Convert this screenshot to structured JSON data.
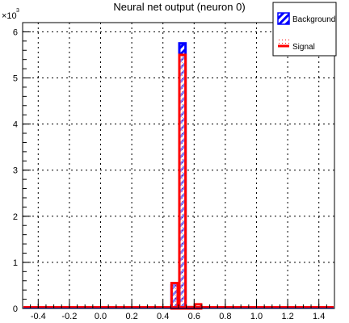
{
  "chart_data": {
    "type": "histogram",
    "title": "Neural net output (neuron 0)",
    "xlabel": "",
    "ylabel": "",
    "y_multiplier_label": "×10",
    "y_multiplier_exponent": "3",
    "xlim": [
      -0.5,
      1.5
    ],
    "ylim": [
      0,
      6200
    ],
    "grid": true,
    "legend_position": "top-right",
    "x_ticks": [
      -0.4,
      -0.2,
      0.0,
      0.2,
      0.4,
      0.6,
      0.8,
      1.0,
      1.2,
      1.4
    ],
    "x_tick_labels": [
      "-0.4",
      "-0.2",
      "0.0",
      "0.2",
      "0.4",
      "0.6",
      "0.8",
      "1.0",
      "1.2",
      "1.4"
    ],
    "y_ticks": [
      0,
      1000,
      2000,
      3000,
      4000,
      5000,
      6000
    ],
    "y_tick_labels": [
      "0",
      "1",
      "2",
      "3",
      "4",
      "5",
      "6"
    ],
    "bin_width": 0.05,
    "series": [
      {
        "name": "Background",
        "color": "#0000ff",
        "style": "hatched",
        "bins": [
          {
            "x0": 0.45,
            "x1": 0.5,
            "y": 500
          },
          {
            "x0": 0.5,
            "x1": 0.55,
            "y": 5750
          },
          {
            "x0": 0.55,
            "x1": 0.6,
            "y": 20
          },
          {
            "x0": 0.6,
            "x1": 0.65,
            "y": 0
          }
        ]
      },
      {
        "name": "Signal",
        "color": "#ff0000",
        "style": "dotted",
        "bins": [
          {
            "x0": 0.45,
            "x1": 0.5,
            "y": 550
          },
          {
            "x0": 0.5,
            "x1": 0.55,
            "y": 5500
          },
          {
            "x0": 0.55,
            "x1": 0.6,
            "y": 30
          },
          {
            "x0": 0.6,
            "x1": 0.65,
            "y": 90
          }
        ]
      }
    ]
  }
}
